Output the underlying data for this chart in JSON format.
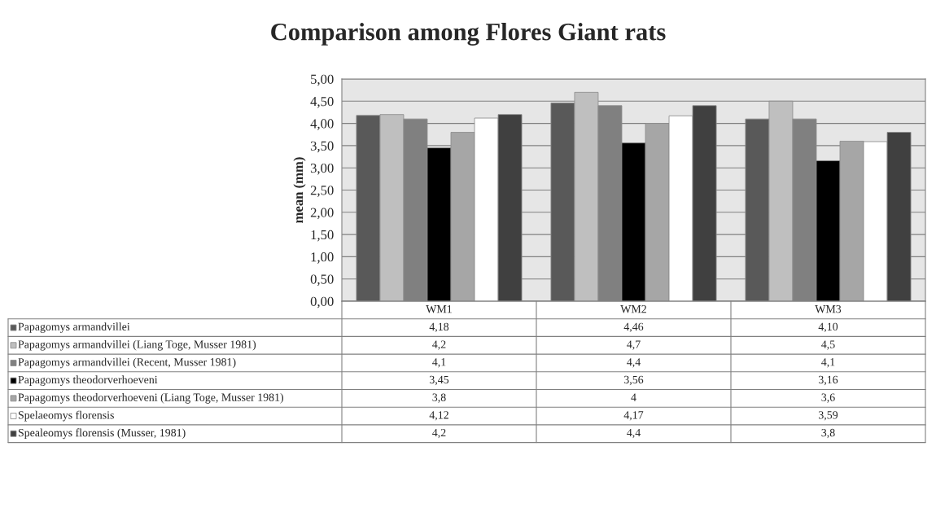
{
  "chart_data": {
    "type": "bar",
    "title": "Comparison among Flores Giant rats",
    "ylabel": "mean (mm)",
    "categories": [
      "WM1",
      "WM2",
      "WM3"
    ],
    "series": [
      {
        "name": "Papagomys armandvillei",
        "color": "#595959",
        "values": [
          4.18,
          4.46,
          4.1
        ],
        "value_labels": [
          "4,18",
          "4,46",
          "4,10"
        ]
      },
      {
        "name": "Papagomys armandvillei (Liang Toge, Musser 1981)",
        "color": "#bfbfbf",
        "values": [
          4.2,
          4.7,
          4.5
        ],
        "value_labels": [
          "4,2",
          "4,7",
          "4,5"
        ]
      },
      {
        "name": "Papagomys armandvillei (Recent, Musser 1981)",
        "color": "#808080",
        "values": [
          4.1,
          4.4,
          4.1
        ],
        "value_labels": [
          "4,1",
          "4,4",
          "4,1"
        ]
      },
      {
        "name": "Papagomys theodorverhoeveni",
        "color": "#000000",
        "values": [
          3.45,
          3.56,
          3.16
        ],
        "value_labels": [
          "3,45",
          "3,56",
          "3,16"
        ]
      },
      {
        "name": "Papagomys theodorverhoeveni (Liang Toge, Musser 1981)",
        "color": "#a6a6a6",
        "values": [
          3.8,
          4,
          3.6
        ],
        "value_labels": [
          "3,8",
          "4",
          "3,6"
        ]
      },
      {
        "name": "Spelaeomys florensis",
        "color": "#ffffff",
        "values": [
          4.12,
          4.17,
          3.59
        ],
        "value_labels": [
          "4,12",
          "4,17",
          "3,59"
        ]
      },
      {
        "name": "Spealeomys florensis (Musser, 1981)",
        "color": "#404040",
        "values": [
          4.2,
          4.4,
          3.8
        ],
        "value_labels": [
          "4,2",
          "4,4",
          "3,8"
        ]
      }
    ],
    "ylim": [
      0,
      5
    ],
    "yticks": [
      {
        "value": 0,
        "label": "0,00"
      },
      {
        "value": 0.5,
        "label": "0,50"
      },
      {
        "value": 1,
        "label": "1,00"
      },
      {
        "value": 1.5,
        "label": "1,50"
      },
      {
        "value": 2,
        "label": "2,00"
      },
      {
        "value": 2.5,
        "label": "2,50"
      },
      {
        "value": 3,
        "label": "3,00"
      },
      {
        "value": 3.5,
        "label": "3,50"
      },
      {
        "value": 4,
        "label": "4,00"
      },
      {
        "value": 4.5,
        "label": "4,50"
      },
      {
        "value": 5,
        "label": "5,00"
      }
    ],
    "grid": "y",
    "legend": "bottom"
  }
}
